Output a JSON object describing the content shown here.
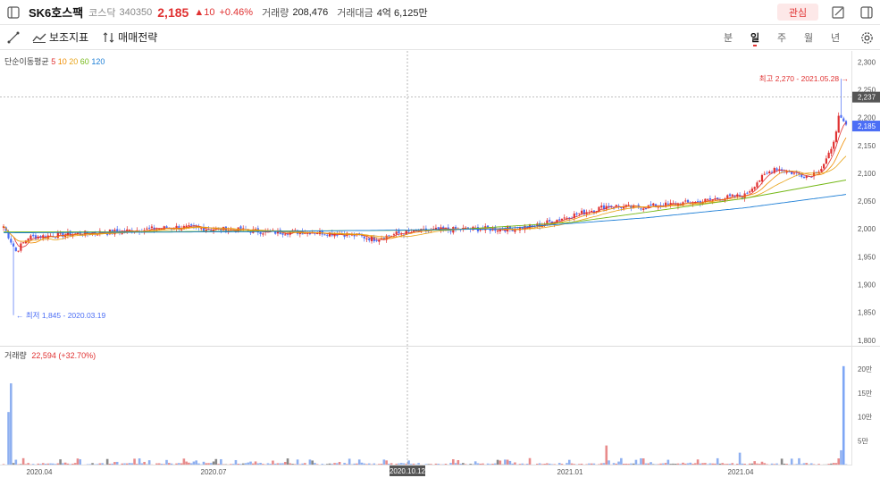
{
  "header": {
    "name": "SK6호스팩",
    "market": "코스닥",
    "code": "340350",
    "price": "2,185",
    "change": "▲10",
    "change_rate": "+0.46%",
    "volume_label": "거래량",
    "volume_value": "208,476",
    "amount_label": "거래대금",
    "amount_value": "4억 6,125만",
    "fav_label": "관심"
  },
  "toolbar": {
    "indicator_label": "보조지표",
    "strategy_label": "매매전략",
    "periods": [
      "분",
      "일",
      "주",
      "월",
      "년"
    ],
    "selected_period": "일"
  },
  "legend": {
    "ma_title": "단순이동평균",
    "ma_periods": [
      "5",
      "10",
      "20",
      "60",
      "120"
    ],
    "volume_title": "거래량",
    "volume_value": "22,594 (+32.70%)"
  },
  "colors": {
    "up": "#e03131",
    "down": "#4c6ef5",
    "ma5": "#e03131",
    "ma10": "#f08c00",
    "ma20": "#e8a317",
    "ma60": "#74b816",
    "ma120": "#1c7ed6"
  },
  "chart_data": {
    "type": "candlestick",
    "price_axis_ticks": [
      "2,300",
      "2,250",
      "2,200",
      "2,150",
      "2,100",
      "2,050",
      "2,000",
      "1,950",
      "1,900",
      "1,850",
      "1,800"
    ],
    "price_ylim": [
      1790,
      2320
    ],
    "volume_axis_ticks": [
      "20만",
      "15만",
      "10만",
      "5만"
    ],
    "volume_ylim": [
      0,
      215000
    ],
    "x_ticks": [
      "2020.04",
      "2020.07",
      "2020.10.12",
      "2021.01",
      "2021.04"
    ],
    "crosshair_date": "2020.10.12",
    "crosshair_price": "2,237",
    "current_price": "2,185",
    "high_annotation": "최고 2,270 - 2021.05.28 →",
    "low_annotation": "← 최저 1,845 - 2020.03.19",
    "price_path": [
      [
        0,
        2005
      ],
      [
        5,
        1960
      ],
      [
        10,
        1985
      ],
      [
        25,
        1990
      ],
      [
        45,
        1995
      ],
      [
        70,
        2003
      ],
      [
        95,
        1998
      ],
      [
        110,
        1994
      ],
      [
        125,
        1995
      ],
      [
        140,
        1990
      ],
      [
        150,
        1982
      ],
      [
        160,
        1992
      ],
      [
        175,
        1998
      ],
      [
        190,
        2000
      ],
      [
        205,
        2000
      ],
      [
        215,
        2005
      ],
      [
        225,
        2018
      ],
      [
        235,
        2030
      ],
      [
        245,
        2042
      ],
      [
        255,
        2038
      ],
      [
        265,
        2042
      ],
      [
        280,
        2048
      ],
      [
        290,
        2055
      ],
      [
        300,
        2060
      ],
      [
        305,
        2085
      ],
      [
        312,
        2110
      ],
      [
        320,
        2100
      ],
      [
        326,
        2095
      ],
      [
        331,
        2110
      ],
      [
        335,
        2140
      ],
      [
        338,
        2200
      ],
      [
        341,
        2185
      ]
    ],
    "ma_values": {
      "ma60": [
        [
          0,
          1995
        ],
        [
          60,
          1995
        ],
        [
          180,
          1998
        ],
        [
          230,
          2012
        ],
        [
          260,
          2030
        ],
        [
          300,
          2055
        ],
        [
          341,
          2088
        ]
      ],
      "ma120": [
        [
          0,
          1993
        ],
        [
          100,
          1995
        ],
        [
          200,
          2000
        ],
        [
          260,
          2020
        ],
        [
          300,
          2038
        ],
        [
          341,
          2062
        ]
      ]
    },
    "volume_spikes": [
      [
        2,
        110000
      ],
      [
        3,
        170000
      ],
      [
        200,
        10000
      ],
      [
        244,
        40000
      ],
      [
        298,
        25000
      ],
      [
        339,
        30000
      ],
      [
        340,
        206000
      ]
    ]
  }
}
